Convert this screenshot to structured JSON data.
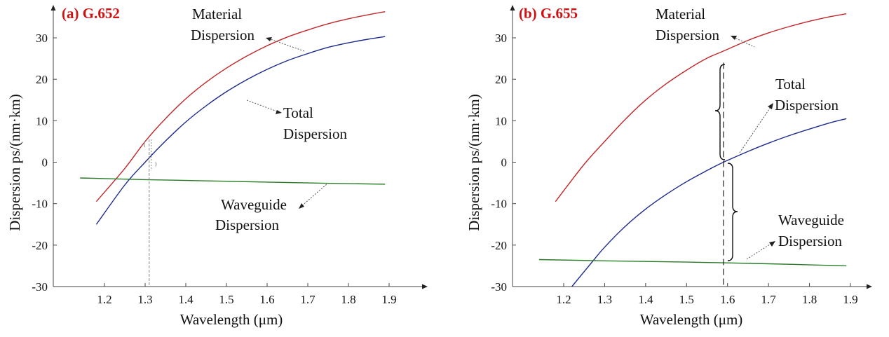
{
  "chart_data": [
    {
      "type": "line",
      "title": "(a) G.652",
      "title_color": "#cc1111",
      "xlabel": "Wavelength (μm)",
      "ylabel": "Dispersion ps/(nm·km)",
      "xlim": [
        1.1,
        1.95
      ],
      "ylim": [
        -30,
        35
      ],
      "xticks": [
        "1.2",
        "1.3",
        "1.4",
        "1.5",
        "1.6",
        "1.7",
        "1.8",
        "1.9"
      ],
      "yticks": [
        "30",
        "20",
        "10",
        "0",
        "-10",
        "-20",
        "-30"
      ],
      "grid": false,
      "series": [
        {
          "key": "material",
          "color": "#c0282a",
          "x": [
            1.18,
            1.25,
            1.3,
            1.35,
            1.4,
            1.45,
            1.5,
            1.55,
            1.6,
            1.65,
            1.7,
            1.75,
            1.8,
            1.85,
            1.89
          ],
          "y": [
            -9.5,
            -1.5,
            5,
            10.5,
            15.3,
            19.3,
            22.7,
            25.6,
            28.1,
            30.2,
            31.9,
            33.4,
            34.6,
            35.6,
            36.3
          ]
        },
        {
          "key": "total",
          "color": "#1c2a8c",
          "x": [
            1.18,
            1.25,
            1.3,
            1.35,
            1.4,
            1.45,
            1.5,
            1.55,
            1.6,
            1.65,
            1.7,
            1.75,
            1.8,
            1.85,
            1.89
          ],
          "y": [
            -15,
            -5.5,
            0,
            5.1,
            9.7,
            13.6,
            17,
            19.9,
            22.4,
            24.5,
            26.2,
            27.7,
            28.8,
            29.7,
            30.3
          ]
        },
        {
          "key": "waveguide",
          "color": "#2a7a2a",
          "x": [
            1.14,
            1.3,
            1.5,
            1.7,
            1.89
          ],
          "y": [
            -3.8,
            -4.2,
            -4.6,
            -5,
            -5.3
          ]
        }
      ],
      "annotations": [
        {
          "lines": [
            "Material",
            "Dispersion"
          ],
          "points_to": "material",
          "at_x": 1.61
        },
        {
          "lines": [
            "Total",
            "Dispersion"
          ],
          "points_to": "total",
          "at_x": 1.5
        },
        {
          "lines": [
            "Waveguide",
            "Dispersion"
          ],
          "points_to": "waveguide",
          "at_x": 1.75
        }
      ],
      "marker_x": 1.31
    },
    {
      "type": "line",
      "title": "(b) G.655",
      "title_color": "#cc1111",
      "xlabel": "Wavelength (μm)",
      "ylabel": "Dispersion ps/(nm·km)",
      "xlim": [
        1.1,
        1.95
      ],
      "ylim": [
        -30,
        35
      ],
      "xticks": [
        "1.2",
        "1.3",
        "1.4",
        "1.5",
        "1.6",
        "1.7",
        "1.8",
        "1.9"
      ],
      "yticks": [
        "30",
        "20",
        "10",
        "0",
        "-10",
        "-20",
        "-30"
      ],
      "grid": false,
      "series": [
        {
          "key": "material",
          "color": "#c0282a",
          "x": [
            1.18,
            1.25,
            1.3,
            1.35,
            1.4,
            1.45,
            1.5,
            1.55,
            1.59,
            1.65,
            1.7,
            1.75,
            1.8,
            1.85,
            1.89
          ],
          "y": [
            -9.5,
            -0.5,
            5,
            10.3,
            15,
            18.9,
            22.2,
            25.1,
            26.8,
            29.4,
            31.2,
            32.7,
            34,
            35.1,
            35.8
          ]
        },
        {
          "key": "total",
          "color": "#1c2a8c",
          "x": [
            1.22,
            1.27,
            1.3,
            1.35,
            1.4,
            1.45,
            1.5,
            1.55,
            1.59,
            1.65,
            1.7,
            1.75,
            1.8,
            1.85,
            1.89
          ],
          "y": [
            -30,
            -24,
            -20.5,
            -15.5,
            -11.3,
            -7.8,
            -4.7,
            -2,
            0,
            2.6,
            4.6,
            6.4,
            8,
            9.5,
            10.5
          ]
        },
        {
          "key": "waveguide",
          "color": "#2a7a2a",
          "x": [
            1.14,
            1.3,
            1.5,
            1.7,
            1.89
          ],
          "y": [
            -23.5,
            -23.8,
            -24.1,
            -24.5,
            -25
          ]
        }
      ],
      "annotations": [
        {
          "lines": [
            "Material",
            "Dispersion"
          ],
          "points_to": "material",
          "at_x": 1.64
        },
        {
          "lines": [
            "Total",
            "Dispersion"
          ],
          "points_to": "total",
          "at_x": 1.59
        },
        {
          "lines": [
            "Waveguide",
            "Dispersion"
          ],
          "points_to": "waveguide",
          "at_x": 1.64
        }
      ],
      "marker_x": 1.59
    }
  ]
}
